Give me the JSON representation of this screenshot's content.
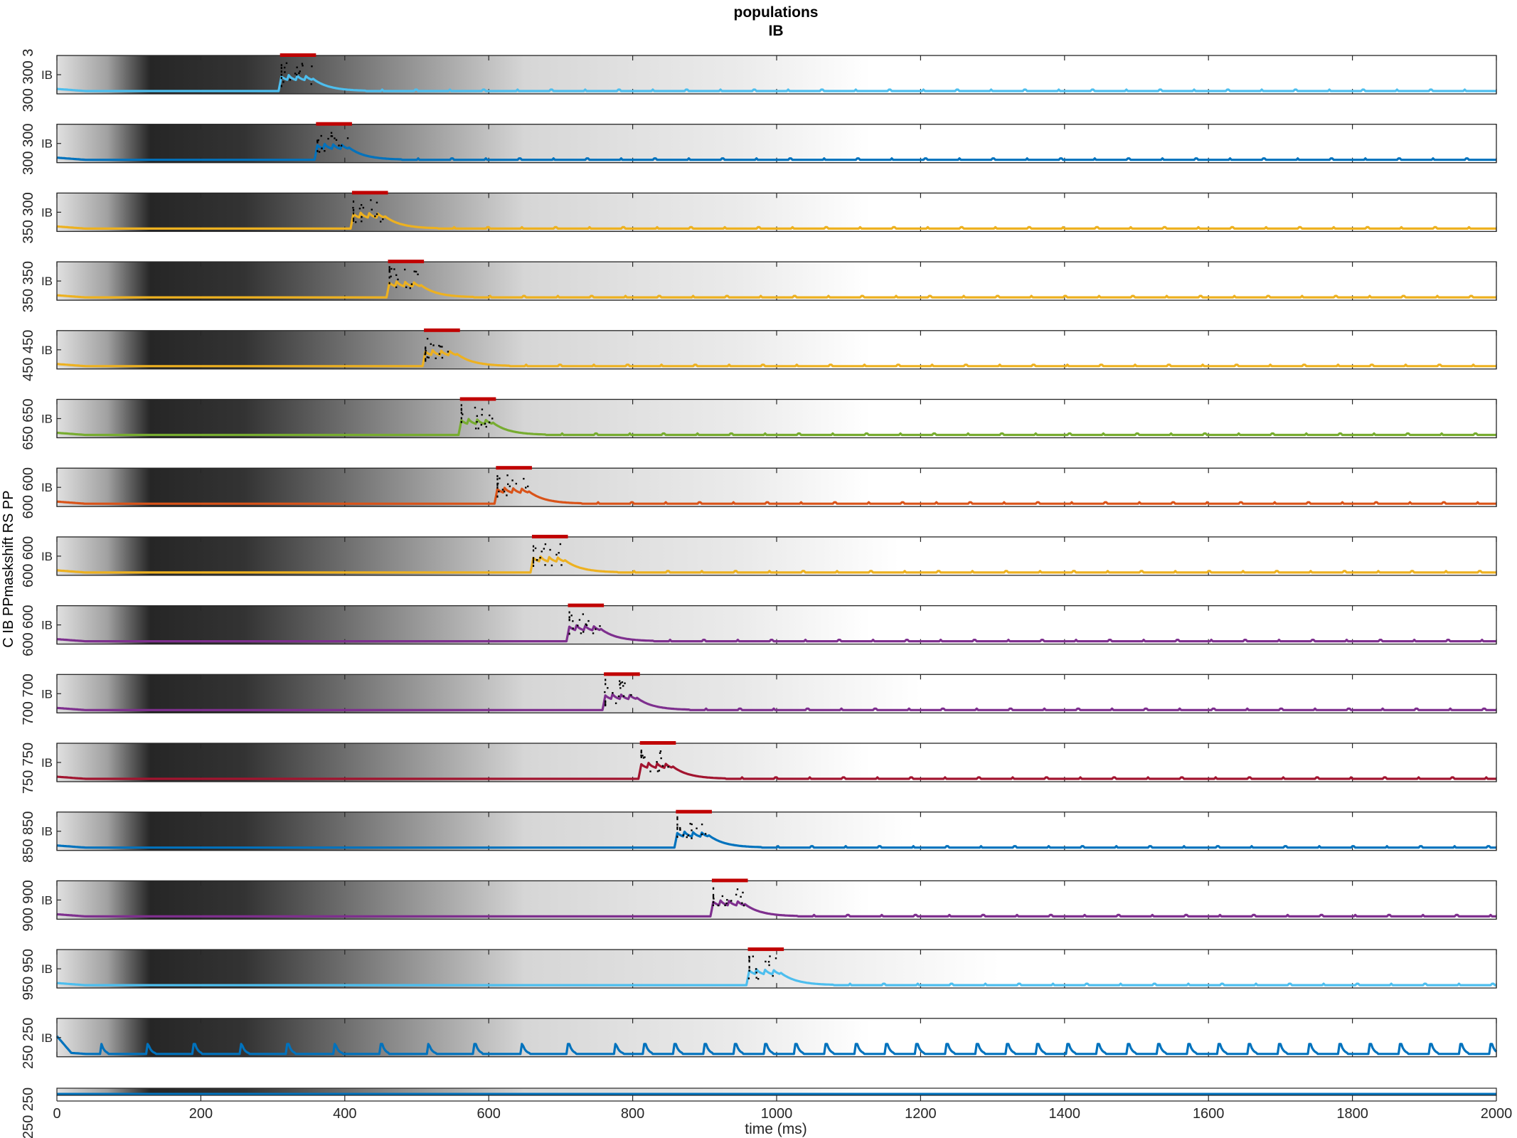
{
  "figure": {
    "title_line1": "populations",
    "title_line2": "IB",
    "xlabel": "time (ms)",
    "ylabel": "C IB PPmaskshift RS PP",
    "panel_label": "IB",
    "left_tick_labels": [
      "300 300 3",
      "300 300",
      "350 300",
      "350 350",
      "450 450",
      "650 650",
      "600 600",
      "600 600",
      "600 600",
      "700 700",
      "750 750",
      "850 850",
      "900 900",
      "950 950",
      "250 250",
      "250 250"
    ]
  },
  "colors": {
    "light-blue": "#4DBEEE",
    "blue": "#0072BD",
    "yellow": "#EDB120",
    "green": "#77AC30",
    "orange": "#D95319",
    "purple": "#7E2F8E",
    "dark-red": "#A2142F",
    "stim_bar": "#C00000",
    "axes": "#262626"
  },
  "chart_data": {
    "type": "line",
    "xlabel": "time (ms)",
    "xlim": [
      0,
      2000
    ],
    "xticks": [
      0,
      200,
      400,
      600,
      800,
      1000,
      1200,
      1400,
      1600,
      1800,
      2000
    ],
    "panels": [
      {
        "ylabel": "IB",
        "color": "light-blue",
        "onset": 310,
        "stim_bar": [
          310,
          360
        ],
        "shade_end": 1130,
        "baseline": "quiet"
      },
      {
        "ylabel": "IB",
        "color": "blue",
        "onset": 360,
        "stim_bar": [
          360,
          410
        ],
        "shade_end": 1130,
        "baseline": "quiet"
      },
      {
        "ylabel": "IB",
        "color": "yellow",
        "onset": 410,
        "stim_bar": [
          410,
          460
        ],
        "shade_end": 1130,
        "baseline": "quiet"
      },
      {
        "ylabel": "IB",
        "color": "yellow",
        "onset": 460,
        "stim_bar": [
          460,
          510
        ],
        "shade_end": 1130,
        "baseline": "quiet"
      },
      {
        "ylabel": "IB",
        "color": "yellow",
        "onset": 510,
        "stim_bar": [
          510,
          560
        ],
        "shade_end": 1130,
        "baseline": "quiet"
      },
      {
        "ylabel": "IB",
        "color": "green",
        "onset": 560,
        "stim_bar": [
          560,
          610
        ],
        "shade_end": 1130,
        "baseline": "quiet"
      },
      {
        "ylabel": "IB",
        "color": "orange",
        "onset": 610,
        "stim_bar": [
          610,
          660
        ],
        "shade_end": 1130,
        "baseline": "quiet"
      },
      {
        "ylabel": "IB",
        "color": "yellow",
        "onset": 660,
        "stim_bar": [
          660,
          710
        ],
        "shade_end": 1170,
        "baseline": "quiet"
      },
      {
        "ylabel": "IB",
        "color": "purple",
        "onset": 710,
        "stim_bar": [
          710,
          760
        ],
        "shade_end": 1130,
        "baseline": "quiet"
      },
      {
        "ylabel": "IB",
        "color": "purple",
        "onset": 760,
        "stim_bar": [
          760,
          810
        ],
        "shade_end": 1200,
        "baseline": "quiet"
      },
      {
        "ylabel": "IB",
        "color": "dark-red",
        "onset": 810,
        "stim_bar": [
          810,
          860
        ],
        "shade_end": 1130,
        "baseline": "quiet"
      },
      {
        "ylabel": "IB",
        "color": "blue",
        "onset": 860,
        "stim_bar": [
          860,
          910
        ],
        "shade_end": 1190,
        "baseline": "quiet"
      },
      {
        "ylabel": "IB",
        "color": "purple",
        "onset": 910,
        "stim_bar": [
          910,
          960
        ],
        "shade_end": 1130,
        "baseline": "quiet"
      },
      {
        "ylabel": "IB",
        "color": "light-blue",
        "onset": 960,
        "stim_bar": [
          960,
          1010
        ],
        "shade_end": 1310,
        "baseline": "quiet"
      },
      {
        "ylabel": "IB",
        "color": "blue",
        "onset": null,
        "stim_bar": null,
        "shade_end": 1130,
        "baseline": "spiking"
      }
    ],
    "bottom_strip": {
      "color": "blue",
      "shade_end": 1130
    },
    "grid": "x-ticks only",
    "legend": "none"
  }
}
